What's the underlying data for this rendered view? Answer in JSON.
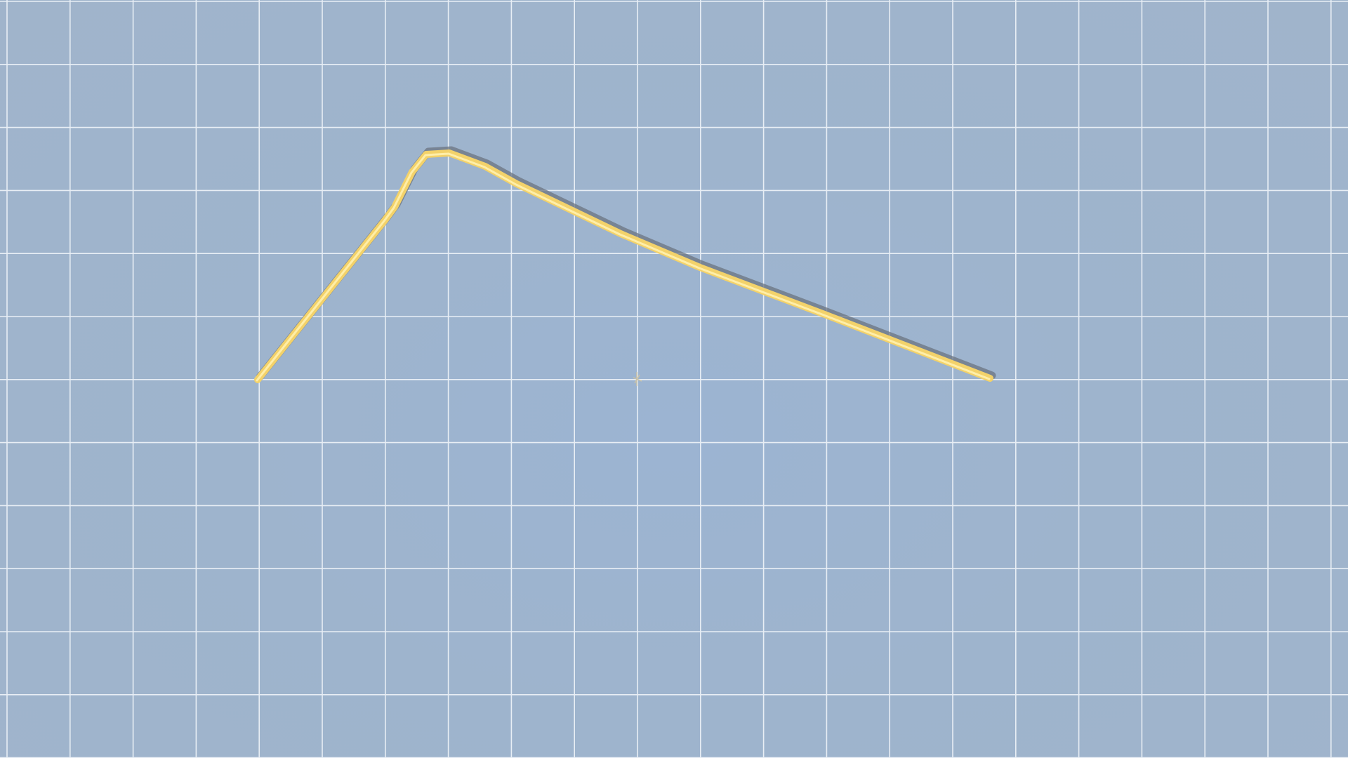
{
  "scene": {
    "background_color": "#9db3cc",
    "grid_line_color": "#e8eef5",
    "tube_color": "#f3d26a",
    "tube_highlight_color": "#fff1b0",
    "tube_shadow_color": "#6b7480",
    "crosshair_color": "#c9c2a8",
    "crosshair_icon": "crosshair-icon"
  }
}
